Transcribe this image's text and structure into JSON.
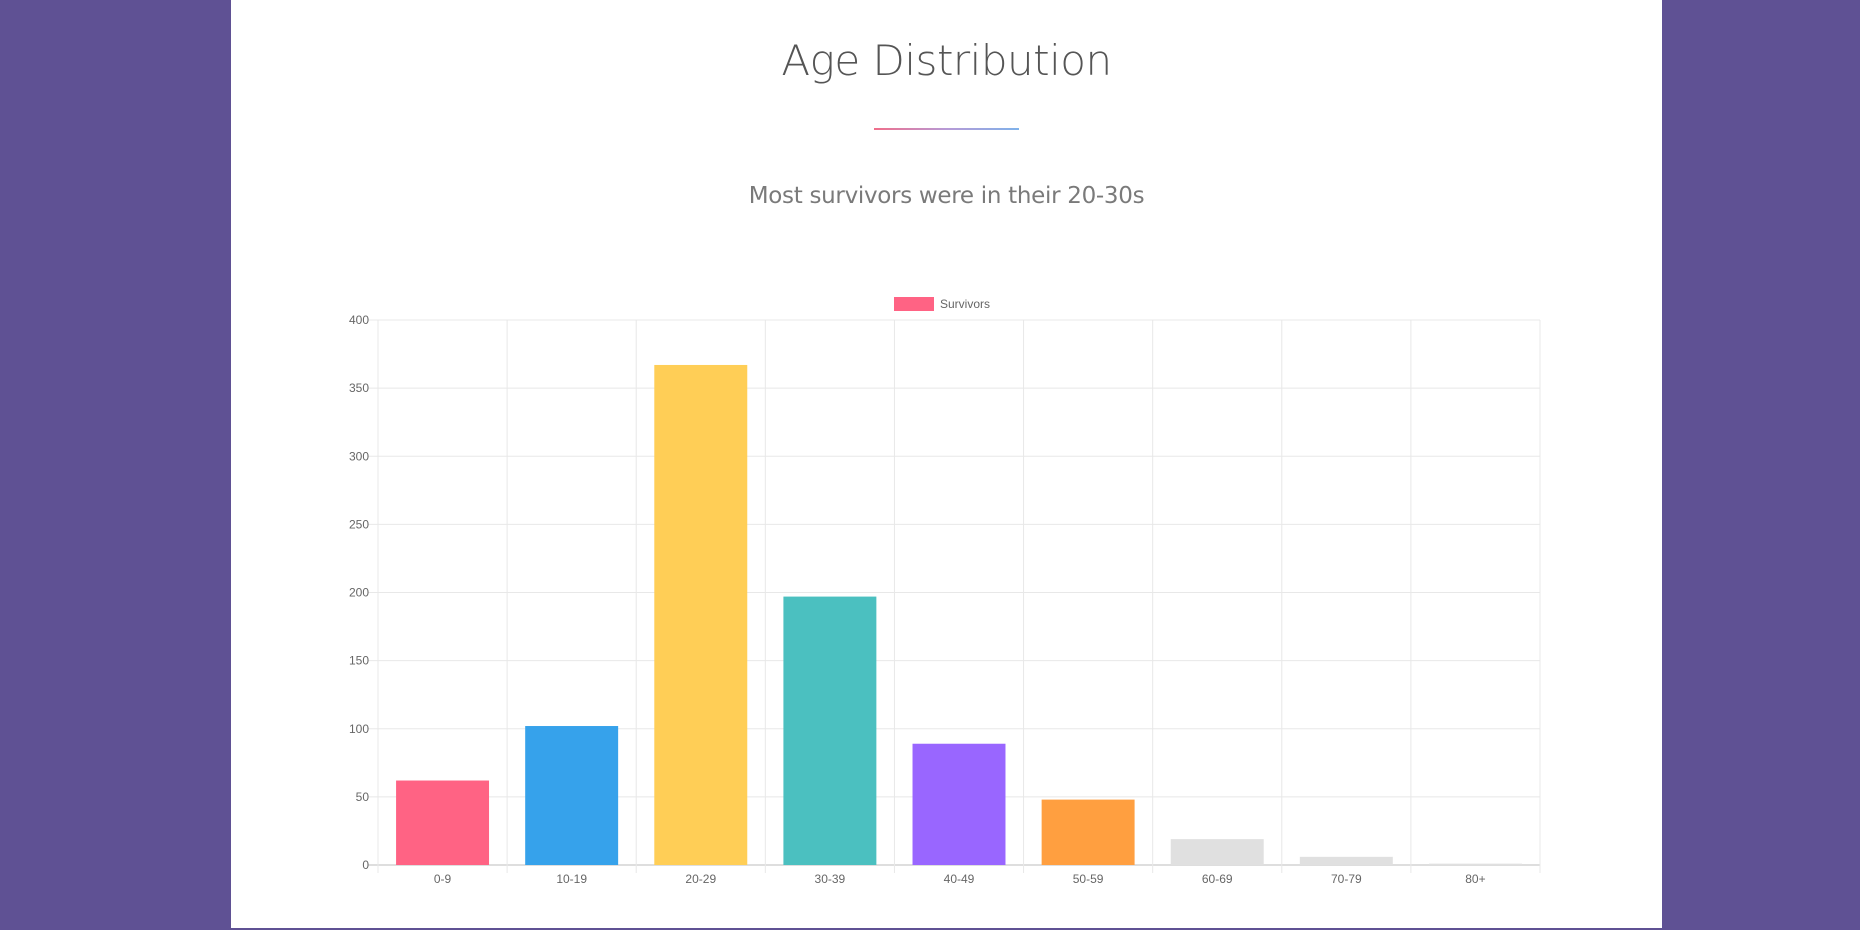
{
  "page": {
    "title": "Age Distribution",
    "subtitle": "Most survivors were in their 20-30s"
  },
  "colors": {
    "background": "#5f5194",
    "panel": "#ffffff",
    "divider_start": "#f06e8a",
    "divider_end": "#7fb2ea"
  },
  "chart_data": {
    "type": "bar",
    "title": "",
    "xlabel": "",
    "ylabel": "",
    "categories": [
      "0-9",
      "10-19",
      "20-29",
      "30-39",
      "40-49",
      "50-59",
      "60-69",
      "70-79",
      "80+"
    ],
    "series": [
      {
        "name": "Survivors",
        "values": [
          62,
          102,
          367,
          197,
          89,
          48,
          19,
          6,
          1
        ],
        "colors": [
          "#ff6384",
          "#36a2eb",
          "#ffce56",
          "#4bc0c0",
          "#9966ff",
          "#ff9f40",
          "#e0e0e0",
          "#e0e0e0",
          "#e0e0e0"
        ]
      }
    ],
    "ylim": [
      0,
      400
    ],
    "yticks": [
      0,
      50,
      100,
      150,
      200,
      250,
      300,
      350,
      400
    ],
    "grid": true,
    "legend_position": "top-center",
    "legend_color": "#ff6384"
  }
}
